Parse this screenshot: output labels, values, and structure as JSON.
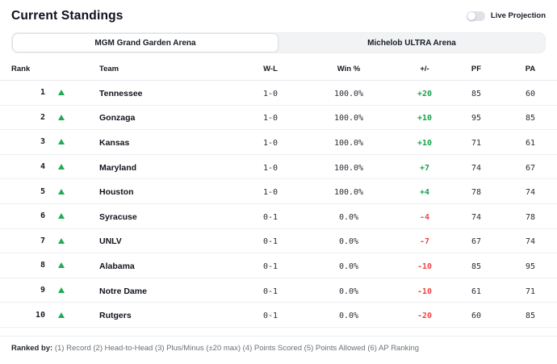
{
  "page": {
    "title": "Current Standings",
    "live_projection_label": "Live Projection",
    "live_projection_on": false
  },
  "tabs": [
    {
      "label": "MGM Grand Garden Arena",
      "active": true
    },
    {
      "label": "Michelob ULTRA Arena",
      "active": false
    }
  ],
  "table": {
    "columns": [
      "Rank",
      "Team",
      "W-L",
      "Win %",
      "+/-",
      "PF",
      "PA"
    ],
    "rows": [
      {
        "rank": "1",
        "trend": "up",
        "team": "Tennessee",
        "wl": "1-0",
        "win_pct": "100.0%",
        "plus_minus": "+20",
        "pf": "85",
        "pa": "60"
      },
      {
        "rank": "2",
        "trend": "up",
        "team": "Gonzaga",
        "wl": "1-0",
        "win_pct": "100.0%",
        "plus_minus": "+10",
        "pf": "95",
        "pa": "85"
      },
      {
        "rank": "3",
        "trend": "up",
        "team": "Kansas",
        "wl": "1-0",
        "win_pct": "100.0%",
        "plus_minus": "+10",
        "pf": "71",
        "pa": "61"
      },
      {
        "rank": "4",
        "trend": "up",
        "team": "Maryland",
        "wl": "1-0",
        "win_pct": "100.0%",
        "plus_minus": "+7",
        "pf": "74",
        "pa": "67"
      },
      {
        "rank": "5",
        "trend": "up",
        "team": "Houston",
        "wl": "1-0",
        "win_pct": "100.0%",
        "plus_minus": "+4",
        "pf": "78",
        "pa": "74"
      },
      {
        "rank": "6",
        "trend": "up",
        "team": "Syracuse",
        "wl": "0-1",
        "win_pct": "0.0%",
        "plus_minus": "-4",
        "pf": "74",
        "pa": "78"
      },
      {
        "rank": "7",
        "trend": "up",
        "team": "UNLV",
        "wl": "0-1",
        "win_pct": "0.0%",
        "plus_minus": "-7",
        "pf": "67",
        "pa": "74"
      },
      {
        "rank": "8",
        "trend": "up",
        "team": "Alabama",
        "wl": "0-1",
        "win_pct": "0.0%",
        "plus_minus": "-10",
        "pf": "85",
        "pa": "95"
      },
      {
        "rank": "9",
        "trend": "up",
        "team": "Notre Dame",
        "wl": "0-1",
        "win_pct": "0.0%",
        "plus_minus": "-10",
        "pf": "61",
        "pa": "71"
      },
      {
        "rank": "10",
        "trend": "up",
        "team": "Rutgers",
        "wl": "0-1",
        "win_pct": "0.0%",
        "plus_minus": "-20",
        "pf": "60",
        "pa": "85"
      }
    ]
  },
  "footer": {
    "ranked_by_label": "Ranked by:",
    "ranked_by_text": " (1) Record (2) Head-to-Head (3) Plus/Minus (±20 max) (4) Points Scored (5) Points Allowed (6) AP Ranking"
  },
  "colors": {
    "positive": "#16a34a",
    "negative": "#ef4444",
    "trend_up": "#1fab54"
  }
}
